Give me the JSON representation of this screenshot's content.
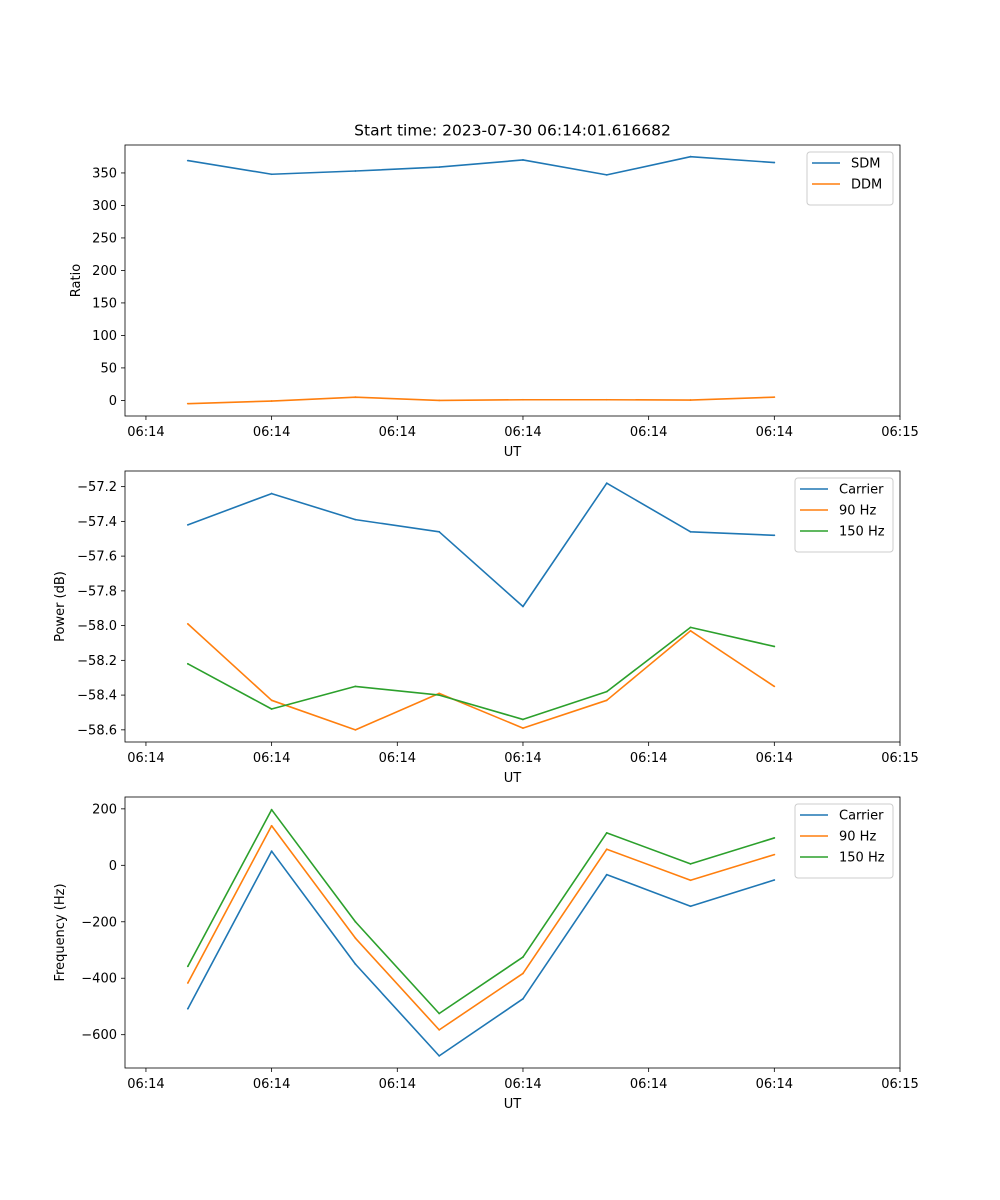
{
  "figure": {
    "title": "Start time: 2023-07-30 06:14:01.616682",
    "colors": {
      "blue": "#1f77b4",
      "orange": "#ff7f0e",
      "green": "#2ca02c"
    }
  },
  "chart_data": [
    {
      "type": "line",
      "title": "Start time: 2023-07-30 06:14:01.616682",
      "xlabel": "UT",
      "ylabel": "Ratio",
      "x": [
        1,
        2,
        3,
        4,
        5,
        6,
        7,
        8
      ],
      "xlim": [
        0.25,
        9.5
      ],
      "xticks": [
        0.5,
        2,
        3.5,
        5,
        6.5,
        8,
        9.5
      ],
      "xtick_labels": [
        "06:14",
        "06:14",
        "06:14",
        "06:14",
        "06:14",
        "06:14",
        "06:15"
      ],
      "ylim": [
        -24,
        393
      ],
      "yticks": [
        0,
        50,
        100,
        150,
        200,
        250,
        300,
        350
      ],
      "ytick_labels": [
        "0",
        "50",
        "100",
        "150",
        "200",
        "250",
        "300",
        "350"
      ],
      "legend_position": "upper-right",
      "series": [
        {
          "name": "SDM",
          "color": "#1f77b4",
          "values": [
            369,
            348,
            353,
            359,
            370,
            347,
            375,
            366
          ]
        },
        {
          "name": "DDM",
          "color": "#ff7f0e",
          "values": [
            -5,
            -1,
            5,
            0,
            1,
            1,
            0.5,
            5
          ]
        }
      ]
    },
    {
      "type": "line",
      "title": "",
      "xlabel": "UT",
      "ylabel": "Power (dB)",
      "x": [
        1,
        2,
        3,
        4,
        5,
        6,
        7,
        8
      ],
      "xlim": [
        0.25,
        9.5
      ],
      "xticks": [
        0.5,
        2,
        3.5,
        5,
        6.5,
        8,
        9.5
      ],
      "xtick_labels": [
        "06:14",
        "06:14",
        "06:14",
        "06:14",
        "06:14",
        "06:14",
        "06:15"
      ],
      "ylim": [
        -58.67,
        -57.11
      ],
      "yticks": [
        -58.6,
        -58.4,
        -58.2,
        -58.0,
        -57.8,
        -57.6,
        -57.4,
        -57.2
      ],
      "ytick_labels": [
        "−58.6",
        "−58.4",
        "−58.2",
        "−58.0",
        "−57.8",
        "−57.6",
        "−57.4",
        "−57.2"
      ],
      "legend_position": "upper-right",
      "series": [
        {
          "name": "Carrier",
          "color": "#1f77b4",
          "values": [
            -57.42,
            -57.24,
            -57.39,
            -57.46,
            -57.89,
            -57.18,
            -57.46,
            -57.48
          ]
        },
        {
          "name": "90 Hz",
          "color": "#ff7f0e",
          "values": [
            -57.99,
            -58.43,
            -58.6,
            -58.39,
            -58.59,
            -58.43,
            -58.03,
            -58.35
          ]
        },
        {
          "name": "150 Hz",
          "color": "#2ca02c",
          "values": [
            -58.22,
            -58.48,
            -58.35,
            -58.4,
            -58.54,
            -58.38,
            -58.01,
            -58.12
          ]
        }
      ]
    },
    {
      "type": "line",
      "title": "",
      "xlabel": "UT",
      "ylabel": "Frequency (Hz)",
      "x": [
        1,
        2,
        3,
        4,
        5,
        6,
        7,
        8
      ],
      "xlim": [
        0.25,
        9.5
      ],
      "xticks": [
        0.5,
        2,
        3.5,
        5,
        6.5,
        8,
        9.5
      ],
      "xtick_labels": [
        "06:14",
        "06:14",
        "06:14",
        "06:14",
        "06:14",
        "06:14",
        "06:15"
      ],
      "ylim": [
        -718,
        242
      ],
      "yticks": [
        -600,
        -400,
        -200,
        0,
        200
      ],
      "ytick_labels": [
        "−600",
        "−400",
        "−200",
        "0",
        "200"
      ],
      "legend_position": "upper-right",
      "series": [
        {
          "name": "Carrier",
          "color": "#1f77b4",
          "values": [
            -508,
            50,
            -350,
            -675,
            -473,
            -33,
            -145,
            -52
          ]
        },
        {
          "name": "90 Hz",
          "color": "#ff7f0e",
          "values": [
            -417,
            140,
            -258,
            -583,
            -383,
            57,
            -53,
            38
          ]
        },
        {
          "name": "150 Hz",
          "color": "#2ca02c",
          "values": [
            -358,
            197,
            -200,
            -525,
            -325,
            115,
            5,
            97
          ]
        }
      ]
    }
  ]
}
